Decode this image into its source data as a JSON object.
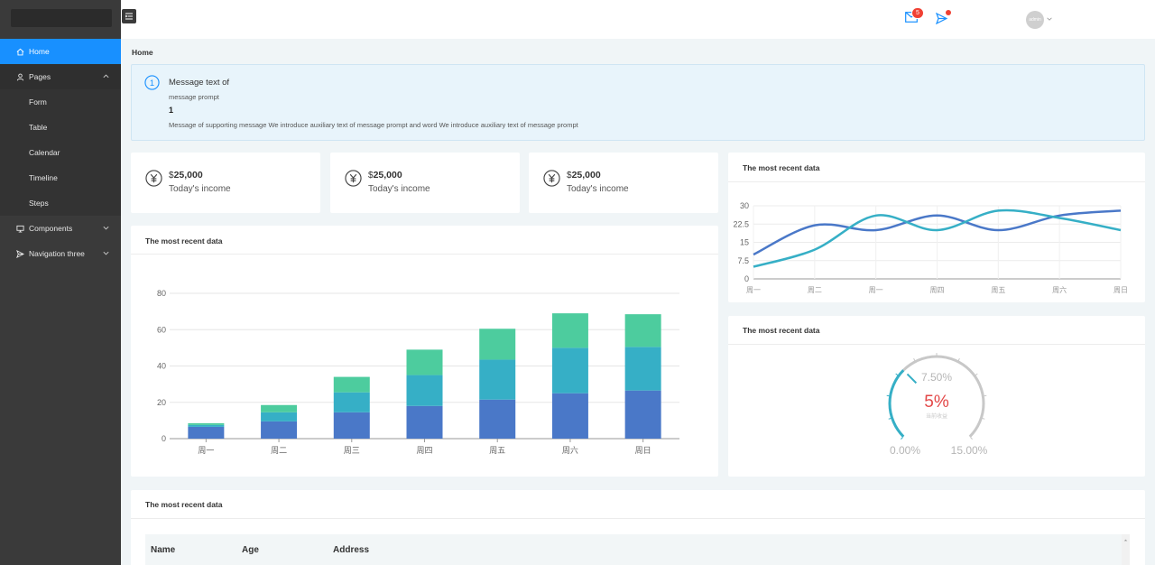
{
  "sidebar": {
    "items": [
      {
        "label": "Home",
        "icon": "home-icon",
        "active": true
      },
      {
        "label": "Pages",
        "icon": "user-icon",
        "open": true,
        "children": [
          "Form",
          "Table",
          "Calendar",
          "Timeline",
          "Steps"
        ]
      },
      {
        "label": "Components",
        "icon": "monitor-icon"
      },
      {
        "label": "Navigation three",
        "icon": "send-icon"
      }
    ]
  },
  "header": {
    "mail_count": "5",
    "user": "admin"
  },
  "breadcrumb": "Home",
  "alert": {
    "title": "Message text of",
    "prompt": "message prompt",
    "number": "1",
    "description": "Message of supporting message We introduce auxiliary text of message prompt and word We introduce auxiliary text of message prompt"
  },
  "income_cards": [
    {
      "currency": "$",
      "amount": "25,000",
      "label": "Today's income"
    },
    {
      "currency": "$",
      "amount": "25,000",
      "label": "Today's income"
    },
    {
      "currency": "$",
      "amount": "25,000",
      "label": "Today's income"
    }
  ],
  "colors": {
    "accent": "#1890ff",
    "series_dark_blue": "#4a78c8",
    "series_teal": "#36afc6",
    "series_green": "#4dcc9e",
    "gauge_value": "#e34848"
  },
  "chart_data": [
    {
      "type": "bar",
      "title": "The most recent data",
      "stacked": true,
      "categories": [
        "周一",
        "周二",
        "周三",
        "周四",
        "周五",
        "周六",
        "周日"
      ],
      "series": [
        {
          "values": [
            6.5,
            9.5,
            14.5,
            18,
            21.5,
            25,
            26.5
          ]
        },
        {
          "values": [
            1,
            5,
            11,
            17,
            22,
            25,
            24
          ]
        },
        {
          "values": [
            1,
            4,
            8.5,
            14,
            17,
            19,
            18
          ]
        }
      ],
      "ylim": [
        0,
        80
      ],
      "yticks": [
        0,
        20,
        40,
        60,
        80
      ],
      "grid": true
    },
    {
      "type": "line",
      "title": "The most recent data",
      "smooth": true,
      "categories": [
        "周一",
        "周二",
        "周一",
        "周四",
        "周五",
        "周六",
        "周日"
      ],
      "series": [
        {
          "values": [
            10,
            22,
            20,
            26,
            20,
            26,
            28
          ]
        },
        {
          "values": [
            5,
            12,
            26,
            20,
            28,
            25,
            20
          ]
        }
      ],
      "ylim": [
        0,
        30
      ],
      "yticks": [
        "0",
        "7.5",
        "15",
        "22.5",
        "30"
      ],
      "grid": true
    },
    {
      "type": "gauge",
      "title": "The most recent data",
      "min_label": "0.00%",
      "max_label": "15.00%",
      "mid_label": "7.50%",
      "value_label": "5%",
      "sub_label": "当前收益",
      "min": 0,
      "max": 15,
      "value": 5
    }
  ],
  "table": {
    "title": "The most recent data",
    "columns": [
      "Name",
      "Age",
      "Address"
    ]
  }
}
